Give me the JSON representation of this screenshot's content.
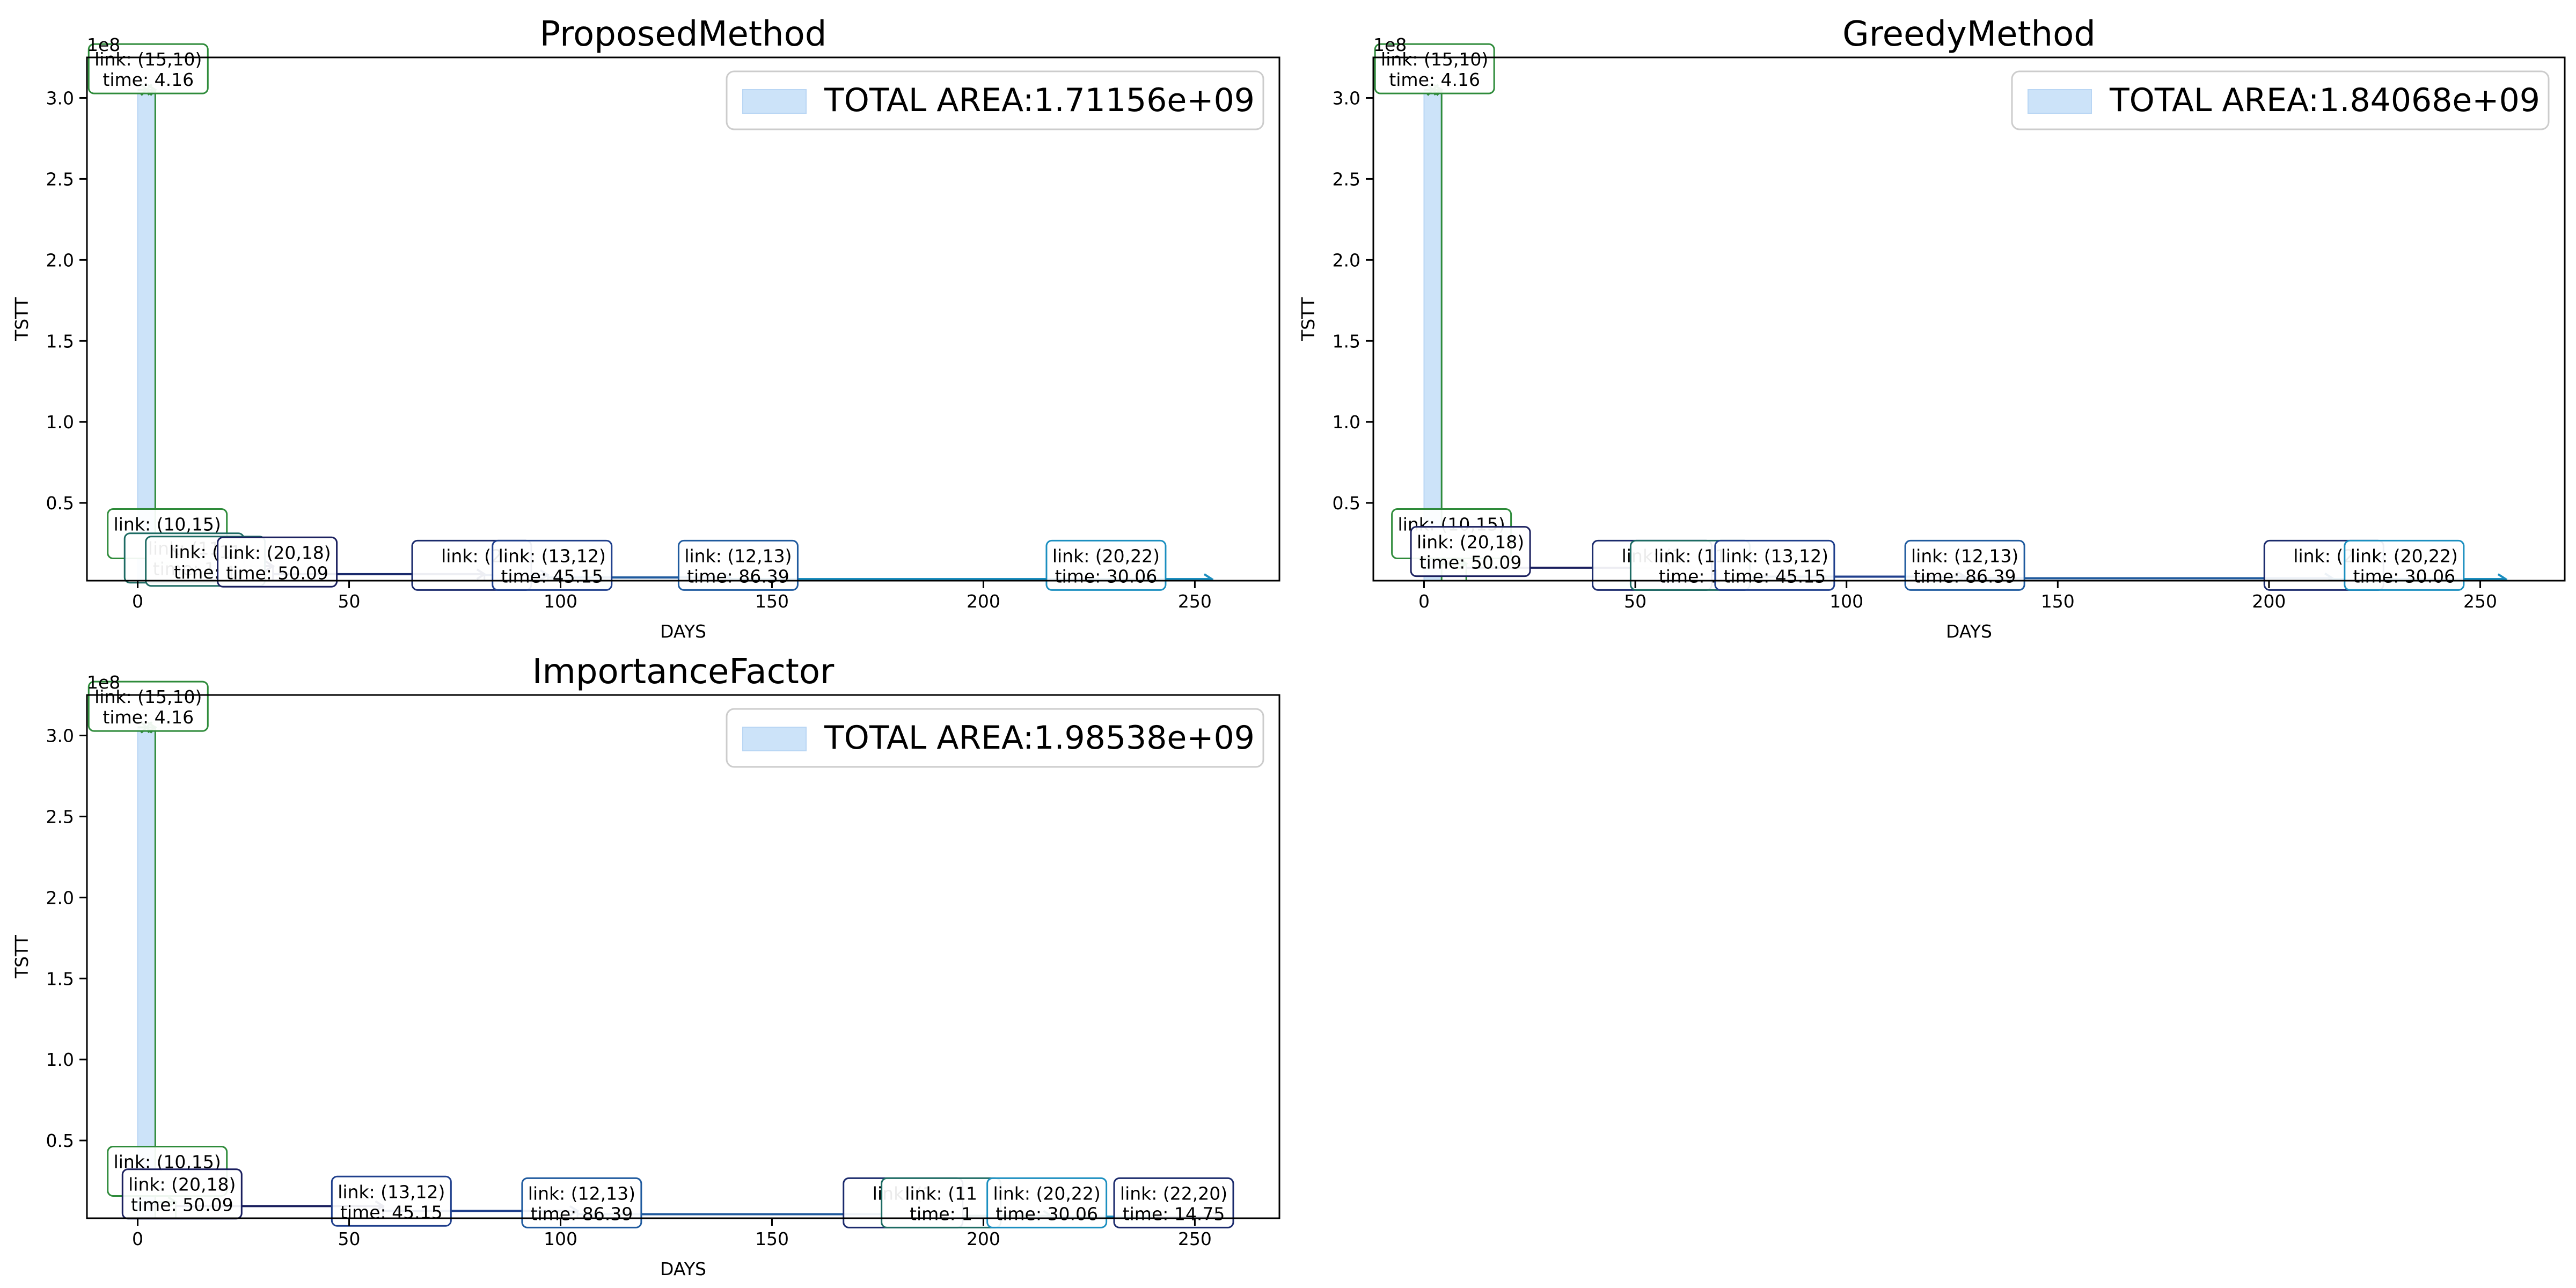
{
  "chart_data": [
    {
      "type": "line",
      "title": "ProposedMethod",
      "xlabel": "DAYS",
      "ylabel": "TSTT",
      "y_scale_label": "1e8",
      "xlim": [
        -12,
        270
      ],
      "ylim": [
        0.02,
        3.25
      ],
      "xticks": [
        0,
        50,
        100,
        150,
        200,
        250
      ],
      "yticks": [
        0.5,
        1.0,
        1.5,
        2.0,
        2.5,
        3.0
      ],
      "legend": {
        "label": "TOTAL AREA:1.71156e+09",
        "position": "top-right",
        "color": "#cce3f9"
      },
      "area_band": {
        "x": [
          0,
          4.16
        ],
        "y_top": 3.05
      },
      "steps": [
        {
          "link": "(15,10)",
          "time": "4.16",
          "x0": 0,
          "x1": 4.16,
          "y": 3.05,
          "color": "#2e8b3a"
        },
        {
          "link": "(10,15)",
          "time": "",
          "x0": 4.16,
          "x1": 12,
          "y": 0.125,
          "color": "#2e8b3a"
        },
        {
          "link": "(11",
          "time": "1",
          "x0": 12,
          "x1": 15.5,
          "y": 0.115,
          "color": "#1d6b63"
        },
        {
          "link": "(20,18)",
          "time": "50.09",
          "x0": 15.5,
          "x1": 32,
          "y": 0.11,
          "color": "#1a1f5e"
        },
        {
          "link": "(2",
          "time": "",
          "x0": 32,
          "x1": 82,
          "y": 0.06,
          "color": "#1a2a6c"
        },
        {
          "link": "(13,12)",
          "time": "45.15",
          "x0": 82,
          "x1": 97,
          "y": 0.055,
          "color": "#1f3f8c"
        },
        {
          "link": "(12,13)",
          "time": "86.39",
          "x0": 97,
          "x1": 140,
          "y": 0.04,
          "color": "#1f5a9e"
        },
        {
          "link": "(20,22)",
          "time": "30.06",
          "x0": 140,
          "x1": 254,
          "y": 0.03,
          "color": "#1b8fc0"
        }
      ],
      "labels": [
        {
          "link": "(15,10)",
          "time": "4.16",
          "x": 2.5,
          "y": 3.18,
          "color": "#2e8b3a"
        },
        {
          "link": "(10,15)",
          "time": "",
          "x": 7,
          "y": 0.31,
          "color": "#2e8b3a"
        },
        {
          "link": "(11",
          "time": "1",
          "x": 11,
          "y": 0.16,
          "color": "#1d6b63"
        },
        {
          "link": "(11",
          "time": "1",
          "x": 16,
          "y": 0.14,
          "color": "#1d6b63"
        },
        {
          "link": "(20,18)",
          "time": "50.09",
          "x": 33,
          "y": 0.135,
          "color": "#1a1f5e"
        },
        {
          "link": "(2",
          "time": "",
          "x": 79,
          "y": 0.115,
          "color": "#1a2a6c"
        },
        {
          "link": "(13,12)",
          "time": "45.15",
          "x": 98,
          "y": 0.115,
          "color": "#1f3f8c"
        },
        {
          "link": "(12,13)",
          "time": "86.39",
          "x": 142,
          "y": 0.115,
          "color": "#1f5a9e"
        },
        {
          "link": "(20,22)",
          "time": "30.06",
          "x": 229,
          "y": 0.115,
          "color": "#1b8fc0"
        }
      ]
    },
    {
      "type": "line",
      "title": "GreedyMethod",
      "xlabel": "DAYS",
      "ylabel": "TSTT",
      "y_scale_label": "1e8",
      "xlim": [
        -12,
        270
      ],
      "ylim": [
        0.02,
        3.25
      ],
      "xticks": [
        0,
        50,
        100,
        150,
        200,
        250
      ],
      "yticks": [
        0.5,
        1.0,
        1.5,
        2.0,
        2.5,
        3.0
      ],
      "legend": {
        "label": "TOTAL AREA:1.84068e+09",
        "position": "top-right",
        "color": "#cce3f9"
      },
      "area_band": {
        "x": [
          0,
          4.16
        ],
        "y_top": 3.05
      },
      "steps": [
        {
          "link": "(15,10)",
          "time": "4.16",
          "x0": 0,
          "x1": 4.16,
          "y": 3.05,
          "color": "#2e8b3a"
        },
        {
          "link": "(10,15)",
          "time": "",
          "x0": 4.16,
          "x1": 10,
          "y": 0.125,
          "color": "#2e8b3a"
        },
        {
          "link": "(20,18)",
          "time": "50.09",
          "x0": 10,
          "x1": 64,
          "y": 0.1,
          "color": "#1a1f5e"
        },
        {
          "link": "(1",
          "time": "",
          "x0": 64,
          "x1": 75,
          "y": 0.06,
          "color": "#1a2a6c"
        },
        {
          "link": "(13,12)",
          "time": "45.15",
          "x0": 75,
          "x1": 128,
          "y": 0.045,
          "color": "#1f3f8c"
        },
        {
          "link": "(12,13)",
          "time": "86.39",
          "x0": 128,
          "x1": 215,
          "y": 0.035,
          "color": "#1f5a9e"
        },
        {
          "link": "(20,22)",
          "time": "30.06",
          "x0": 215,
          "x1": 256,
          "y": 0.03,
          "color": "#1b8fc0"
        }
      ],
      "labels": [
        {
          "link": "(15,10)",
          "time": "4.16",
          "x": 2.5,
          "y": 3.18,
          "color": "#2e8b3a"
        },
        {
          "link": "(10,15)",
          "time": "",
          "x": 6.5,
          "y": 0.31,
          "color": "#2e8b3a"
        },
        {
          "link": "(20,18)",
          "time": "50.09",
          "x": 11,
          "y": 0.2,
          "color": "#1a1f5e"
        },
        {
          "link": "(1",
          "time": "",
          "x": 54,
          "y": 0.115,
          "color": "#1a2a6c"
        },
        {
          "link": "(11",
          "time": "1",
          "x": 63,
          "y": 0.115,
          "color": "#1d6b63"
        },
        {
          "link": "(13,12)",
          "time": "45.15",
          "x": 83,
          "y": 0.115,
          "color": "#1f3f8c"
        },
        {
          "link": "(12,13)",
          "time": "86.39",
          "x": 128,
          "y": 0.115,
          "color": "#1f5a9e"
        },
        {
          "link": "(2",
          "time": "",
          "x": 213,
          "y": 0.115,
          "color": "#1a2a6c"
        },
        {
          "link": "(20,22)",
          "time": "30.06",
          "x": 232,
          "y": 0.115,
          "color": "#1b8fc0"
        }
      ]
    },
    {
      "type": "line",
      "title": "ImportanceFactor",
      "xlabel": "DAYS",
      "ylabel": "TSTT",
      "y_scale_label": "1e8",
      "xlim": [
        -12,
        270
      ],
      "ylim": [
        0.02,
        3.25
      ],
      "xticks": [
        0,
        50,
        100,
        150,
        200,
        250
      ],
      "yticks": [
        0.5,
        1.0,
        1.5,
        2.0,
        2.5,
        3.0
      ],
      "legend": {
        "label": "TOTAL AREA:1.98538e+09",
        "position": "top-right",
        "color": "#cce3f9"
      },
      "area_band": {
        "x": [
          0,
          4.16
        ],
        "y_top": 3.05
      },
      "steps": [
        {
          "link": "(15,10)",
          "time": "4.16",
          "x0": 0,
          "x1": 4.16,
          "y": 3.05,
          "color": "#2e8b3a"
        },
        {
          "link": "(10,15)",
          "time": "",
          "x0": 4.16,
          "x1": 9,
          "y": 0.12,
          "color": "#2e8b3a"
        },
        {
          "link": "(20,18)",
          "time": "50.09",
          "x0": 9,
          "x1": 58,
          "y": 0.095,
          "color": "#1a1f5e"
        },
        {
          "link": "(13,12)",
          "time": "45.15",
          "x0": 58,
          "x1": 104,
          "y": 0.065,
          "color": "#1f3f8c"
        },
        {
          "link": "(12,13)",
          "time": "86.39",
          "x0": 104,
          "x1": 190,
          "y": 0.045,
          "color": "#1f5a9e"
        },
        {
          "link": "(11",
          "time": "1",
          "x0": 190,
          "x1": 216,
          "y": 0.035,
          "color": "#1d6b63"
        },
        {
          "link": "(20,22)",
          "time": "30.06",
          "x0": 216,
          "x1": 241,
          "y": 0.03,
          "color": "#1b8fc0"
        },
        {
          "link": "(22,20)",
          "time": "14.75",
          "x0": 241,
          "x1": 256,
          "y": 0.028,
          "color": "#1a2a6c"
        }
      ],
      "labels": [
        {
          "link": "(15,10)",
          "time": "4.16",
          "x": 2.5,
          "y": 3.18,
          "color": "#2e8b3a"
        },
        {
          "link": "(10,15)",
          "time": "",
          "x": 7,
          "y": 0.31,
          "color": "#2e8b3a"
        },
        {
          "link": "(20,18)",
          "time": "50.09",
          "x": 10.5,
          "y": 0.17,
          "color": "#1a1f5e"
        },
        {
          "link": "(13,12)",
          "time": "45.15",
          "x": 60,
          "y": 0.125,
          "color": "#1f3f8c"
        },
        {
          "link": "(12,13)",
          "time": "86.39",
          "x": 105,
          "y": 0.115,
          "color": "#1f5a9e"
        },
        {
          "link": "(1",
          "time": "",
          "x": 181,
          "y": 0.115,
          "color": "#1a2a6c"
        },
        {
          "link": "(11",
          "time": "1",
          "x": 190,
          "y": 0.115,
          "color": "#1d6b63"
        },
        {
          "link": "(20,22)",
          "time": "30.06",
          "x": 215,
          "y": 0.115,
          "color": "#1b8fc0"
        },
        {
          "link": "(22,20)",
          "time": "14.75",
          "x": 245,
          "y": 0.115,
          "color": "#1a2a6c"
        }
      ]
    }
  ]
}
